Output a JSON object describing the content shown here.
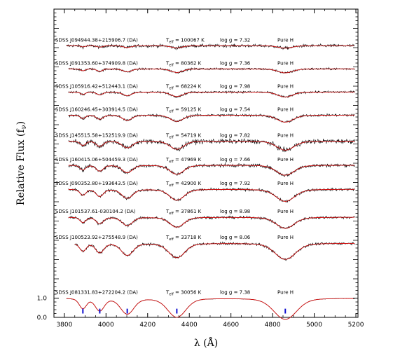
{
  "chart_data": {
    "type": "line",
    "title": "",
    "xlabel": "λ (Å)",
    "ylabel": "Relative Flux (f",
    "ylabel_sub": "ν",
    "ylabel_close": ")",
    "xlim": [
      3750,
      5210
    ],
    "ylim": [
      0,
      16
    ],
    "x_ticks": [
      3800,
      4000,
      4200,
      4400,
      4600,
      4800,
      5000,
      5200
    ],
    "y_ticks": [
      {
        "value": 0.0,
        "label": "0.0"
      },
      {
        "value": 1.0,
        "label": "1.0"
      }
    ],
    "balmer_line_markers": [
      3889,
      3970,
      4102,
      4340,
      4861
    ],
    "marker_color": "#1010d0",
    "model_color": "#d01010",
    "data_color": "#000000",
    "series": [
      {
        "name": "SDSS J094944.38+215906.7 (DA)",
        "teff": "T",
        "teff_sub": "eff",
        "teff_value": " = 100067 K",
        "logg": "log g = 7.32",
        "comp": "Pure H",
        "offset": 14.1,
        "depth": 0.12,
        "noise": 0.07,
        "xstart": 3810
      },
      {
        "name": "SDSS J091353.60+374909.8 (DA)",
        "teff": "T",
        "teff_sub": "eff",
        "teff_value": " = 80362 K",
        "logg": "log g = 7.36",
        "comp": "Pure H",
        "offset": 12.9,
        "depth": 0.2,
        "noise": 0.05,
        "xstart": 3820
      },
      {
        "name": "SDSS J105916.42+512443.1 (DA)",
        "teff": "T",
        "teff_sub": "eff",
        "teff_value": " = 68224 K",
        "logg": "log g = 7.98",
        "comp": "Pure H",
        "offset": 11.7,
        "depth": 0.25,
        "noise": 0.05,
        "xstart": 3820
      },
      {
        "name": "SDSS J160246.45+303914.5 (DA)",
        "teff": "T",
        "teff_sub": "eff",
        "teff_value": " = 59125 K",
        "logg": "log g = 7.54",
        "comp": "Pure H",
        "offset": 10.5,
        "depth": 0.35,
        "noise": 0.06,
        "xstart": 3820
      },
      {
        "name": "SDSS J145515.58+152519.9 (DA)",
        "teff": "T",
        "teff_sub": "eff",
        "teff_value": " = 54719 K",
        "logg": "log g = 7.82",
        "comp": "Pure H",
        "offset": 9.15,
        "depth": 0.45,
        "noise": 0.11,
        "xstart": 3820
      },
      {
        "name": "SDSS J160415.06+504459.3 (DA)",
        "teff": "T",
        "teff_sub": "eff",
        "teff_value": " = 47969 K",
        "logg": "log g = 7.66",
        "comp": "Pure H",
        "offset": 7.9,
        "depth": 0.5,
        "noise": 0.08,
        "xstart": 3820
      },
      {
        "name": "SDSS J090352.80+193643.5 (DA)",
        "teff": "T",
        "teff_sub": "eff",
        "teff_value": " = 42900 K",
        "logg": "log g = 7.92",
        "comp": "Pure H",
        "offset": 6.65,
        "depth": 0.6,
        "noise": 0.06,
        "xstart": 3820
      },
      {
        "name": "SDSS J101537.61-030104.2 (DA)",
        "teff": "T",
        "teff_sub": "eff",
        "teff_value": " = 37861 K",
        "logg": "log g = 8.98",
        "comp": "Pure H",
        "offset": 5.2,
        "depth": 0.55,
        "noise": 0.06,
        "xstart": 3820
      },
      {
        "name": "SDSS J100523.92+275548.9 (DA)",
        "teff": "T",
        "teff_sub": "eff",
        "teff_value": " = 33718 K",
        "logg": "log g = 8.06",
        "comp": "Pure H",
        "offset": 3.85,
        "depth": 0.8,
        "noise": 0.06,
        "xstart": 3850
      },
      {
        "name": "SDSS J081331.83+272204.2 (DA)",
        "teff": "T",
        "teff_sub": "eff",
        "teff_value": " = 30056 K",
        "logg": "log g = 7.38",
        "comp": "Pure H",
        "offset": 1.0,
        "depth": 1.05,
        "noise": 0.01,
        "xstart": 3810
      }
    ]
  }
}
